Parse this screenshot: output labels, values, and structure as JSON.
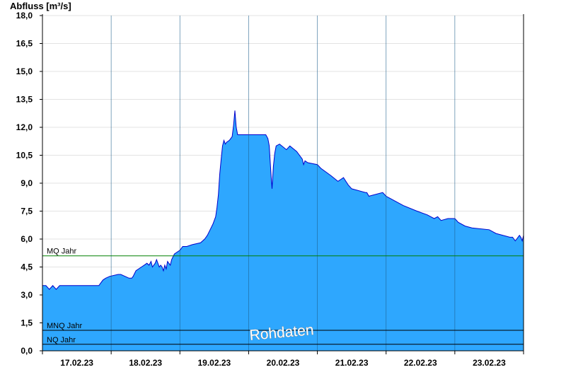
{
  "chart_data": {
    "type": "area",
    "ylabel": "Abfluss [m³/s]",
    "ylim": [
      0,
      18
    ],
    "yticks": [
      "0,0",
      "1,5",
      "3,0",
      "4,5",
      "6,0",
      "7,5",
      "9,0",
      "10,5",
      "12,0",
      "13,5",
      "15,0",
      "16,5",
      "18,0"
    ],
    "xlim": [
      0,
      7
    ],
    "xticks": [
      {
        "label": "17.02.23",
        "pos": 0.5
      },
      {
        "label": "18.02.23",
        "pos": 1.5
      },
      {
        "label": "19.02.23",
        "pos": 2.5
      },
      {
        "label": "20.02.23",
        "pos": 3.5
      },
      {
        "label": "21.02.23",
        "pos": 4.5
      },
      {
        "label": "22.02.23",
        "pos": 5.5
      },
      {
        "label": "23.02.23",
        "pos": 6.5
      }
    ],
    "day_boundaries": [
      1,
      2,
      3,
      4,
      5,
      6
    ],
    "grid": true,
    "fill_color": "#2ea7fe",
    "line_color": "#0000cc",
    "series": [
      {
        "x": [
          0,
          0.05,
          0.1,
          0.15,
          0.2,
          0.25,
          0.3,
          0.82,
          0.88,
          0.92,
          0.98,
          1.1,
          1.14,
          1.26,
          1.3,
          1.32,
          1.36,
          1.4,
          1.44,
          1.48,
          1.52,
          1.55,
          1.58,
          1.6,
          1.64,
          1.66,
          1.7,
          1.72,
          1.74,
          1.76,
          1.78,
          1.8,
          1.82,
          1.86,
          1.88,
          1.92,
          1.96,
          2.0,
          2.04,
          2.1,
          2.18,
          2.3,
          2.36,
          2.4,
          2.44,
          2.48,
          2.52,
          2.54,
          2.56,
          2.58,
          2.6,
          2.62,
          2.64,
          2.66,
          2.68,
          2.72,
          2.76,
          2.78,
          2.8,
          2.82,
          2.84,
          2.86,
          2.88,
          2.9,
          2.92,
          2.94,
          2.96,
          2.98,
          3.0,
          3.25,
          3.28,
          3.3,
          3.32,
          3.34,
          3.36,
          3.38,
          3.4,
          3.45,
          3.55,
          3.6,
          3.7,
          3.78,
          3.8,
          3.82,
          3.86,
          4.0,
          4.05,
          4.2,
          4.3,
          4.38,
          4.45,
          4.5,
          4.7,
          4.72,
          4.75,
          4.95,
          5.0,
          5.05,
          5.15,
          5.25,
          5.45,
          5.6,
          5.65,
          5.7,
          5.75,
          5.8,
          5.9,
          6.0,
          6.05,
          6.15,
          6.25,
          6.5,
          6.6,
          6.8,
          6.82,
          6.84,
          6.86,
          6.88,
          6.9,
          6.92,
          6.94,
          6.96,
          6.98,
          7.0
        ],
        "values": [
          3.5,
          3.5,
          3.3,
          3.5,
          3.3,
          3.5,
          3.5,
          3.5,
          3.8,
          3.9,
          4.0,
          4.1,
          4.1,
          3.9,
          3.9,
          4.0,
          4.3,
          4.4,
          4.5,
          4.6,
          4.7,
          4.6,
          4.8,
          4.5,
          4.7,
          4.9,
          4.5,
          4.6,
          4.5,
          4.3,
          4.6,
          4.4,
          4.8,
          4.6,
          4.9,
          5.2,
          5.3,
          5.4,
          5.6,
          5.6,
          5.7,
          5.8,
          6.0,
          6.2,
          6.5,
          6.8,
          7.2,
          7.7,
          8.4,
          9.5,
          10.3,
          11.0,
          11.3,
          11.1,
          11.2,
          11.3,
          11.5,
          12.1,
          12.9,
          12.0,
          11.6,
          11.6,
          11.6,
          11.6,
          11.6,
          11.6,
          11.6,
          11.6,
          11.6,
          11.6,
          11.4,
          11.0,
          9.8,
          8.7,
          9.9,
          10.6,
          11.0,
          11.1,
          10.8,
          11.0,
          10.7,
          10.3,
          10.0,
          10.2,
          10.1,
          10.0,
          9.8,
          9.4,
          9.1,
          9.3,
          8.9,
          8.7,
          8.5,
          8.5,
          8.3,
          8.5,
          8.3,
          8.2,
          8.0,
          7.8,
          7.5,
          7.3,
          7.2,
          7.1,
          7.2,
          7.0,
          7.1,
          7.1,
          6.9,
          6.7,
          6.6,
          6.5,
          6.3,
          6.1,
          6.1,
          6.1,
          6.0,
          5.9,
          6.0,
          6.1,
          6.2,
          6.1,
          5.9,
          6.2
        ]
      }
    ],
    "reference_lines": [
      {
        "label": "MQ Jahr",
        "value": 5.1,
        "color": "#008000"
      },
      {
        "label": "MNQ Jahr",
        "value": 1.1,
        "color": "#000000"
      },
      {
        "label": "NQ Jahr",
        "value": 0.35,
        "color": "#000000"
      }
    ],
    "watermark": "Rohdaten"
  }
}
